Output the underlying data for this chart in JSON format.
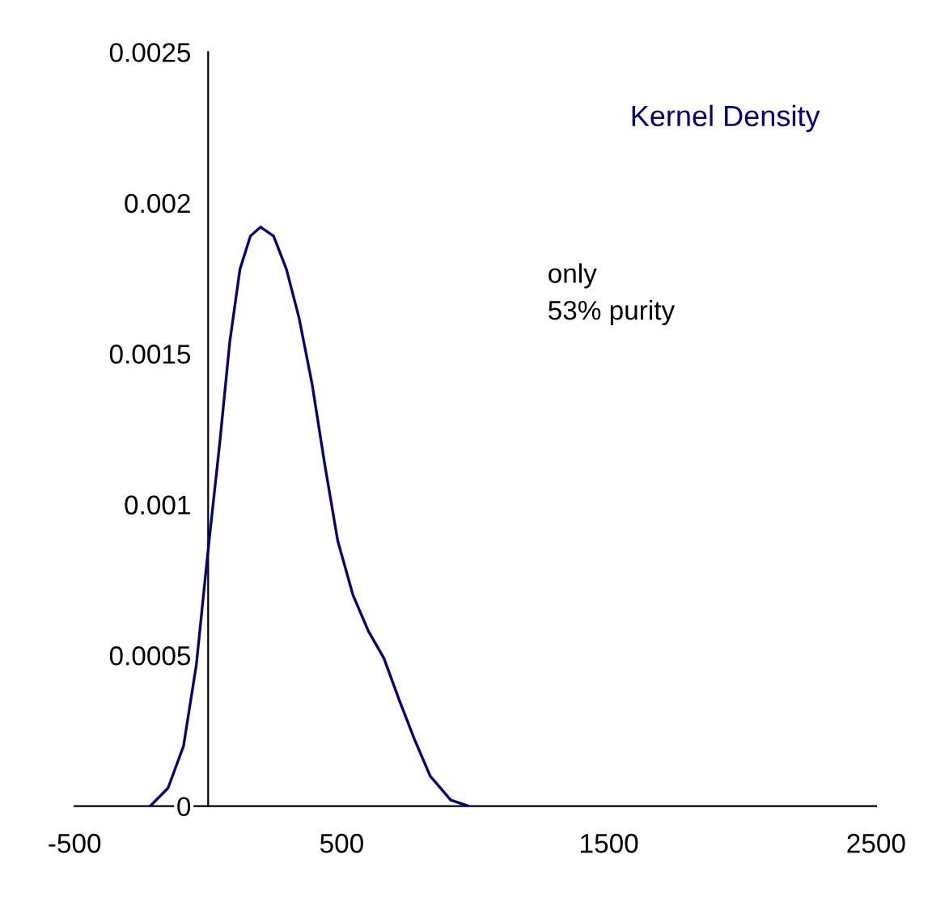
{
  "chart_data": {
    "type": "line",
    "annotations": [
      "Kernel Density",
      "only\n53% purity"
    ],
    "x": [
      -217,
      -150,
      -92,
      -44,
      0,
      43,
      81,
      119,
      158,
      196,
      245,
      293,
      340,
      389,
      437,
      485,
      542,
      600,
      658,
      716,
      773,
      831,
      908,
      975
    ],
    "series": [
      {
        "color": "#000080",
        "values": [
          0,
          6e-05,
          0.0002,
          0.00047,
          0.00085,
          0.0012,
          0.00154,
          0.00178,
          0.00189,
          0.00192,
          0.00189,
          0.00178,
          0.00162,
          0.0014,
          0.00113,
          0.00088,
          0.0007,
          0.00058,
          0.00049,
          0.00035,
          0.00022,
          0.0001,
          2e-05,
          0
        ]
      }
    ],
    "xlim": [
      -500,
      2500
    ],
    "xticks": [
      -500,
      500,
      1500,
      2500
    ],
    "ylim": [
      0,
      0.0025
    ],
    "yticks": [
      0,
      0.0005,
      0.001,
      0.0015,
      0.002,
      0.0025
    ],
    "grid": false,
    "legend": false,
    "marker": "none",
    "line_style": "solid"
  }
}
